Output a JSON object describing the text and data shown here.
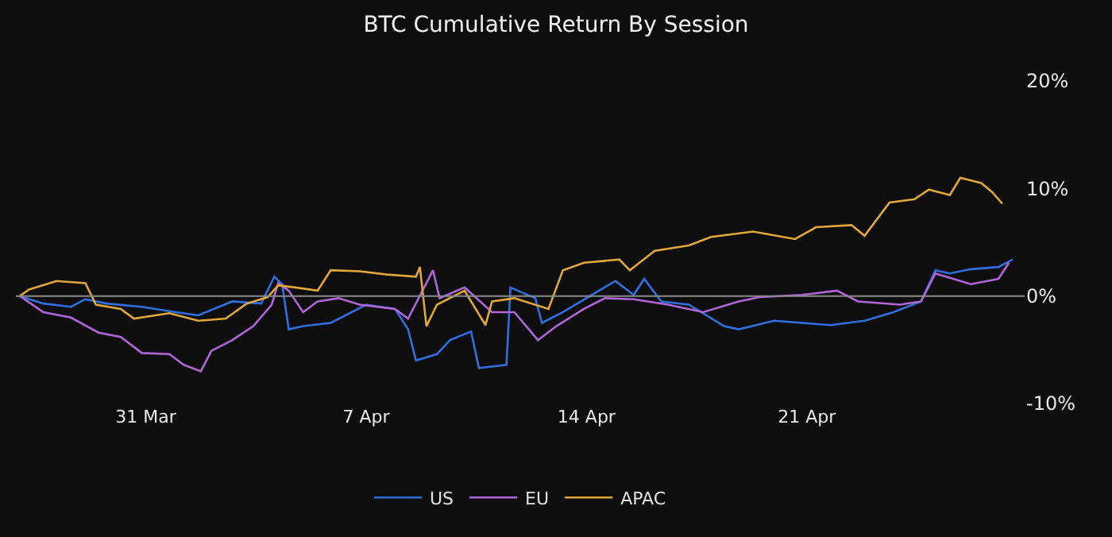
{
  "chart_data": {
    "type": "line",
    "title": "BTC Cumulative Return By Session",
    "xlim": [
      "--03-26T21:00",
      "--04-27T22:00"
    ],
    "xticks": [
      {
        "value": "--03-31",
        "label": "31 Mar"
      },
      {
        "value": "--04-07",
        "label": "7 Apr"
      },
      {
        "value": "--04-14",
        "label": "14 Apr"
      },
      {
        "value": "--04-21",
        "label": "21 Apr"
      }
    ],
    "ylim": [
      -10,
      20
    ],
    "yticks": [
      {
        "value": -10,
        "label": "-10%"
      },
      {
        "value": 0,
        "label": "0%"
      },
      {
        "value": 10,
        "label": "10%"
      },
      {
        "value": 20,
        "label": "20%"
      }
    ],
    "grid": false,
    "legend": "bottom",
    "marker": "none",
    "line_style": "solid",
    "ref_lines": [
      {
        "axis": "y",
        "value": 0,
        "color": "#8a8a8a"
      }
    ],
    "series": [
      {
        "name": "US",
        "color": "#2f6fe0",
        "x": [
          "--03-27T00:00",
          "--03-27T18:00",
          "--03-28T15:00",
          "--03-29T02:00",
          "--03-29T18:00",
          "--03-30T21:00",
          "--03-31T23:00",
          "--04-01T16:00",
          "--04-02T18:00",
          "--04-03T16:00",
          "--04-04T02:00",
          "--04-04T08:00",
          "--04-04T13:00",
          "--04-05T00:00",
          "--04-05T21:00",
          "--04-07T00:00",
          "--04-07T22:00",
          "--04-08T08:00",
          "--04-08T14:00",
          "--04-09T06:00",
          "--04-09T16:00",
          "--04-10T08:00",
          "--04-10T14:00",
          "--04-11T11:00",
          "--04-11T14:00",
          "--04-12T09:00",
          "--04-12T14:00",
          "--04-13T06:00",
          "--04-14T04:00",
          "--04-14T22:00",
          "--04-15T12:00",
          "--04-15T20:00",
          "--04-16T09:00",
          "--04-17T06:00",
          "--04-18T09:00",
          "--04-18T20:00",
          "--04-19T23:00",
          "--04-21T18:00",
          "--04-22T20:00",
          "--04-23T18:00",
          "--04-24T15:00",
          "--04-25T02:00",
          "--04-25T13:00",
          "--04-26T05:00",
          "--04-27T02:00",
          "--04-27T13:00"
        ],
        "values": [
          0,
          -0.7,
          -1.0,
          -0.3,
          -0.7,
          -1.0,
          -1.5,
          -1.8,
          -0.5,
          -0.7,
          1.8,
          1.1,
          -3.1,
          -2.8,
          -2.5,
          -0.8,
          -1.2,
          -3.1,
          -6.0,
          -5.4,
          -4.1,
          -3.3,
          -6.7,
          -6.4,
          0.8,
          -0.2,
          -2.5,
          -1.5,
          0.1,
          1.4,
          0.1,
          1.6,
          -0.5,
          -0.8,
          -2.8,
          -3.1,
          -2.3,
          -2.7,
          -2.3,
          -1.5,
          -0.5,
          2.4,
          2.1,
          2.5,
          2.7,
          3.4
        ]
      },
      {
        "name": "EU",
        "color": "#b065d8",
        "x": [
          "--03-27T00:00",
          "--03-27T18:00",
          "--03-28T15:00",
          "--03-29T12:00",
          "--03-30T05:00",
          "--03-30T21:00",
          "--03-31T18:00",
          "--04-01T05:00",
          "--04-01T18:00",
          "--04-02T02:00",
          "--04-02T18:00",
          "--04-03T10:00",
          "--04-04T00:00",
          "--04-04T05:00",
          "--04-04T13:00",
          "--04-05T00:00",
          "--04-05T11:00",
          "--04-06T03:00",
          "--04-06T19:00",
          "--04-07T22:00",
          "--04-08T08:00",
          "--04-09T03:00",
          "--04-09T08:00",
          "--04-10T03:00",
          "--04-11T00:00",
          "--04-11T17:00",
          "--04-12T11:00",
          "--04-13T01:00",
          "--04-13T22:00",
          "--04-14T14:00",
          "--04-15T12:00",
          "--04-16T14:00",
          "--04-17T17:00",
          "--04-18T20:00",
          "--04-19T12:00",
          "--04-20T20:00",
          "--04-21T23:00",
          "--04-22T15:00",
          "--04-23T23:00",
          "--04-24T15:00",
          "--04-25T02:00",
          "--04-26T05:00",
          "--04-27T02:00",
          "--04-27T10:00"
        ],
        "values": [
          0,
          -1.5,
          -2.0,
          -3.4,
          -3.8,
          -5.3,
          -5.4,
          -6.4,
          -7.0,
          -5.1,
          -4.1,
          -2.8,
          -0.8,
          1.2,
          0.5,
          -1.5,
          -0.5,
          -0.2,
          -0.8,
          -1.2,
          -2.1,
          2.4,
          -0.2,
          0.8,
          -1.5,
          -1.5,
          -4.1,
          -2.8,
          -1.2,
          -0.2,
          -0.3,
          -0.8,
          -1.5,
          -0.5,
          -0.1,
          0.1,
          0.5,
          -0.5,
          -0.8,
          -0.5,
          2.1,
          1.1,
          1.6,
          3.1
        ]
      },
      {
        "name": "APAC",
        "color": "#e0a83a",
        "x": [
          "--03-27T00:00",
          "--03-27T07:00",
          "--03-28T04:00",
          "--03-29T02:00",
          "--03-29T10:00",
          "--03-30T05:00",
          "--03-30T15:00",
          "--03-31T18:00",
          "--04-01T16:00",
          "--04-02T13:00",
          "--04-03T05:00",
          "--04-03T21:00",
          "--04-04T05:00",
          "--04-04T18:00",
          "--04-05T11:00",
          "--04-05T21:00",
          "--04-06T19:00",
          "--04-07T16:00",
          "--04-08T14:00",
          "--04-08T17:00",
          "--04-08T22:00",
          "--04-09T06:00",
          "--04-10T03:00",
          "--04-10T19:00",
          "--04-11T00:00",
          "--04-11T17:00",
          "--04-12T19:00",
          "--04-13T06:00",
          "--04-13T22:00",
          "--04-15T01:00",
          "--04-15T09:00",
          "--04-16T04:00",
          "--04-17T06:00",
          "--04-17T23:00",
          "--04-19T07:00",
          "--04-20T15:00",
          "--04-21T07:00",
          "--04-22T10:00",
          "--04-22T20:00",
          "--04-23T15:00",
          "--04-24T10:00",
          "--04-24T21:00",
          "--04-25T13:00",
          "--04-25T21:00",
          "--04-26T13:00",
          "--04-26T21:00",
          "--04-27T05:00"
        ],
        "values": [
          0,
          0.6,
          1.4,
          1.2,
          -0.8,
          -1.2,
          -2.1,
          -1.6,
          -2.3,
          -2.1,
          -0.7,
          -0.1,
          1.0,
          0.8,
          0.5,
          2.4,
          2.3,
          2.0,
          1.8,
          2.7,
          -2.8,
          -0.8,
          0.5,
          -2.7,
          -0.5,
          -0.2,
          -1.2,
          2.4,
          3.1,
          3.4,
          2.4,
          4.2,
          4.7,
          5.5,
          6.0,
          5.3,
          6.4,
          6.6,
          5.6,
          8.7,
          9.0,
          9.9,
          9.4,
          11.0,
          10.5,
          9.7,
          8.6
        ]
      }
    ]
  }
}
